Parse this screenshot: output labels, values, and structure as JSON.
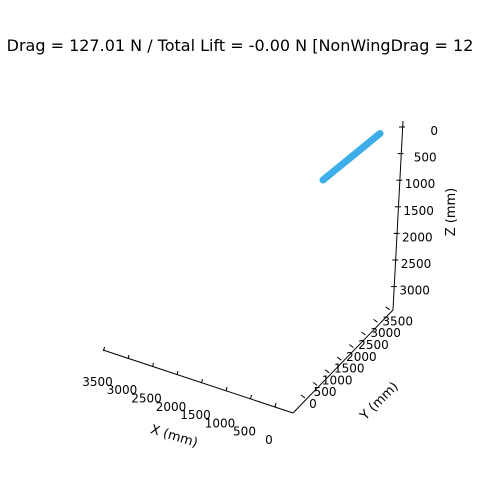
{
  "chart_data": {
    "type": "line3d",
    "title": "Drag = 127.01 N / Total Lift = -0.00 N [NonWingDrag = 12",
    "xlabel": "X (mm)",
    "ylabel": "Y (mm)",
    "zlabel": "Z (mm)",
    "x_ticks": [
      "0",
      "500",
      "1000",
      "1500",
      "2000",
      "2500",
      "3000",
      "3500"
    ],
    "y_ticks": [
      "0",
      "500",
      "1000",
      "1500",
      "2000",
      "2500",
      "3000",
      "3500"
    ],
    "z_ticks": [
      "0",
      "500",
      "1000",
      "1500",
      "2000",
      "2500",
      "3000"
    ],
    "z_inverted": true,
    "series_color": "#3daee9",
    "series": [
      {
        "x": [
          0,
          0
        ],
        "y": [
          0,
          1000
        ],
        "z": [
          0,
          0
        ]
      }
    ]
  }
}
